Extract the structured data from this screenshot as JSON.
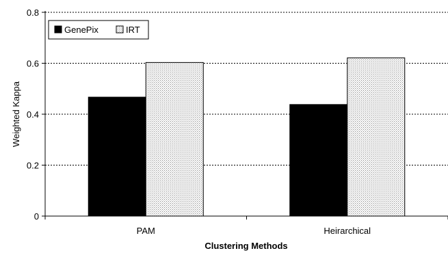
{
  "chart_data": {
    "type": "bar",
    "categories": [
      "PAM",
      "Heirarchical"
    ],
    "series": [
      {
        "name": "GenePix",
        "values": [
          0.467,
          0.438
        ],
        "color": "#000000",
        "pattern": "solid"
      },
      {
        "name": "IRT",
        "values": [
          0.603,
          0.621
        ],
        "color": "#c8c8c8",
        "pattern": "dotted"
      }
    ],
    "xlabel": "Clustering Methods",
    "ylabel": "Weighted Kappa",
    "ylim": [
      0,
      0.8
    ],
    "yticks": [
      0,
      0.2,
      0.4,
      0.6,
      0.8
    ],
    "ytick_labels": [
      "0",
      "0.2",
      "0.4",
      "0.6",
      "0.8"
    ],
    "grid": "horizontal dotted",
    "legend_position": "top-left"
  }
}
